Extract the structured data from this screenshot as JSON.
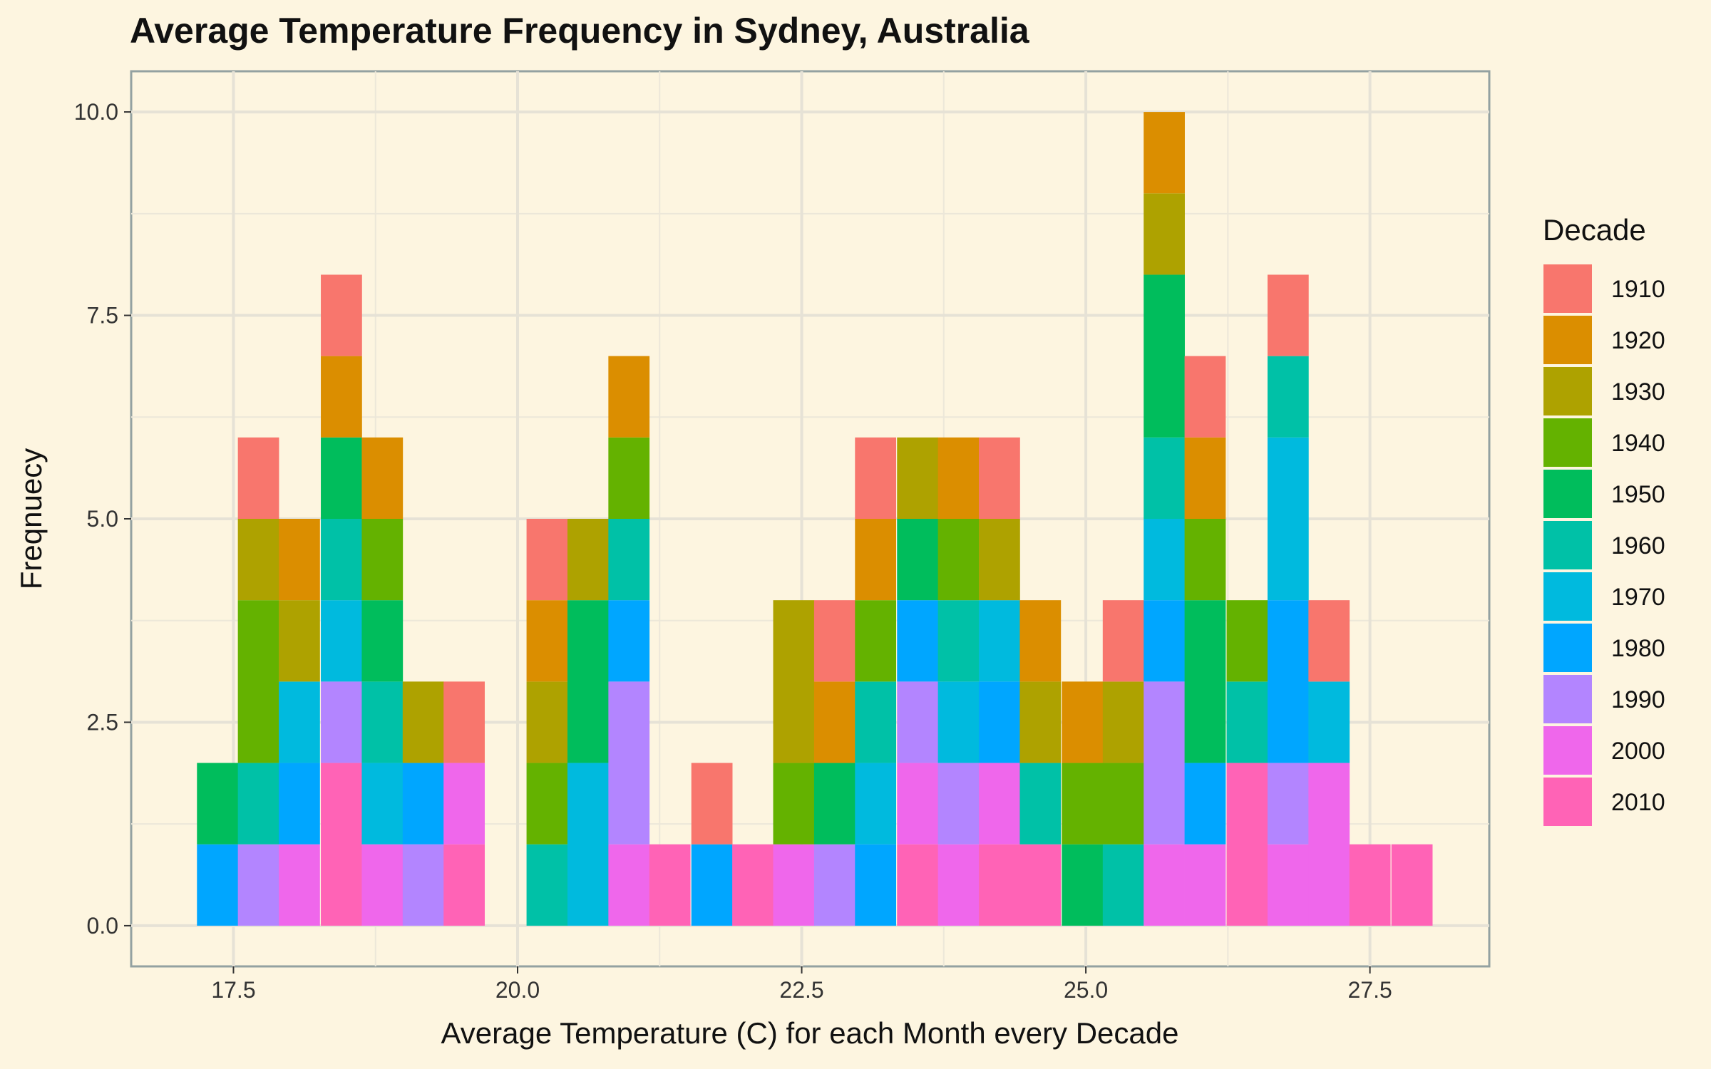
{
  "chart_data": {
    "type": "bar",
    "title": "Average Temperature Frequency in Sydney, Australia",
    "xlabel": "Average Temperature (C) for each Month every Decade",
    "ylabel": "Freqnuecy",
    "xlim": [
      16.6,
      28.55
    ],
    "ylim": [
      -0.5,
      10.5
    ],
    "x_ticks": [
      "17.5",
      "20.0",
      "22.5",
      "25.0",
      "27.5"
    ],
    "x_tick_values": [
      17.5,
      20.0,
      22.5,
      25.0,
      27.5
    ],
    "y_ticks": [
      "0.0",
      "2.5",
      "5.0",
      "7.5",
      "10.0"
    ],
    "y_tick_values": [
      0,
      2.5,
      5,
      7.5,
      10
    ],
    "bin_width": 0.3623,
    "legend_title": "Decade",
    "legend_position": "right",
    "grid": true,
    "series": [
      {
        "name": "1910",
        "color": "#F8766D"
      },
      {
        "name": "1920",
        "color": "#DB8E00"
      },
      {
        "name": "1930",
        "color": "#AEA200"
      },
      {
        "name": "1940",
        "color": "#64B200"
      },
      {
        "name": "1950",
        "color": "#00BD5C"
      },
      {
        "name": "1960",
        "color": "#00C1A7"
      },
      {
        "name": "1970",
        "color": "#00BADE"
      },
      {
        "name": "1980",
        "color": "#00A6FF"
      },
      {
        "name": "1990",
        "color": "#B385FF"
      },
      {
        "name": "2000",
        "color": "#EF67EB"
      },
      {
        "name": "2010",
        "color": "#FF63B6"
      }
    ],
    "bins": [
      {
        "x": 17.36,
        "stack": [
          [
            "1950",
            1
          ],
          [
            "1980",
            1
          ]
        ]
      },
      {
        "x": 17.72,
        "stack": [
          [
            "1910",
            1
          ],
          [
            "1930",
            1
          ],
          [
            "1940",
            2
          ],
          [
            "1960",
            1
          ],
          [
            "1990",
            1
          ]
        ]
      },
      {
        "x": 18.08,
        "stack": [
          [
            "1920",
            1
          ],
          [
            "1930",
            1
          ],
          [
            "1970",
            1
          ],
          [
            "1980",
            1
          ],
          [
            "2000",
            1
          ]
        ]
      },
      {
        "x": 18.45,
        "stack": [
          [
            "1910",
            1
          ],
          [
            "1920",
            1
          ],
          [
            "1950",
            1
          ],
          [
            "1960",
            1
          ],
          [
            "1970",
            1
          ],
          [
            "1990",
            1
          ],
          [
            "2010",
            2
          ]
        ]
      },
      {
        "x": 18.81,
        "stack": [
          [
            "1920",
            1
          ],
          [
            "1940",
            1
          ],
          [
            "1950",
            1
          ],
          [
            "1960",
            1
          ],
          [
            "1970",
            1
          ],
          [
            "2000",
            1
          ]
        ]
      },
      {
        "x": 19.17,
        "stack": [
          [
            "1930",
            1
          ],
          [
            "1980",
            1
          ],
          [
            "1990",
            1
          ]
        ]
      },
      {
        "x": 19.53,
        "stack": [
          [
            "1910",
            1
          ],
          [
            "2000",
            1
          ],
          [
            "2010",
            1
          ]
        ]
      },
      {
        "x": 20.26,
        "stack": [
          [
            "1910",
            1
          ],
          [
            "1920",
            1
          ],
          [
            "1930",
            1
          ],
          [
            "1940",
            1
          ],
          [
            "1960",
            1
          ]
        ]
      },
      {
        "x": 20.62,
        "stack": [
          [
            "1930",
            1
          ],
          [
            "1950",
            2
          ],
          [
            "1970",
            2
          ]
        ]
      },
      {
        "x": 20.98,
        "stack": [
          [
            "1920",
            1
          ],
          [
            "1940",
            1
          ],
          [
            "1960",
            1
          ],
          [
            "1980",
            1
          ],
          [
            "1990",
            2
          ],
          [
            "2000",
            1
          ]
        ]
      },
      {
        "x": 21.34,
        "stack": [
          [
            "2010",
            1
          ]
        ]
      },
      {
        "x": 21.71,
        "stack": [
          [
            "1910",
            1
          ],
          [
            "1980",
            1
          ]
        ]
      },
      {
        "x": 22.07,
        "stack": [
          [
            "2010",
            1
          ]
        ]
      },
      {
        "x": 22.43,
        "stack": [
          [
            "1930",
            2
          ],
          [
            "1940",
            1
          ],
          [
            "2000",
            1
          ]
        ]
      },
      {
        "x": 22.79,
        "stack": [
          [
            "1910",
            1
          ],
          [
            "1920",
            1
          ],
          [
            "1950",
            1
          ],
          [
            "1990",
            1
          ]
        ]
      },
      {
        "x": 23.15,
        "stack": [
          [
            "1910",
            1
          ],
          [
            "1920",
            1
          ],
          [
            "1940",
            1
          ],
          [
            "1960",
            1
          ],
          [
            "1970",
            1
          ],
          [
            "1980",
            1
          ]
        ]
      },
      {
        "x": 23.52,
        "stack": [
          [
            "1930",
            1
          ],
          [
            "1950",
            1
          ],
          [
            "1980",
            1
          ],
          [
            "1990",
            1
          ],
          [
            "2000",
            1
          ],
          [
            "2010",
            1
          ]
        ]
      },
      {
        "x": 23.88,
        "stack": [
          [
            "1920",
            1
          ],
          [
            "1940",
            1
          ],
          [
            "1960",
            1
          ],
          [
            "1970",
            1
          ],
          [
            "1990",
            1
          ],
          [
            "2000",
            1
          ]
        ]
      },
      {
        "x": 24.24,
        "stack": [
          [
            "1910",
            1
          ],
          [
            "1930",
            1
          ],
          [
            "1970",
            1
          ],
          [
            "1980",
            1
          ],
          [
            "2000",
            1
          ],
          [
            "2010",
            1
          ]
        ]
      },
      {
        "x": 24.6,
        "stack": [
          [
            "1920",
            1
          ],
          [
            "1930",
            1
          ],
          [
            "1960",
            1
          ],
          [
            "2010",
            1
          ]
        ]
      },
      {
        "x": 24.97,
        "stack": [
          [
            "1920",
            1
          ],
          [
            "1940",
            1
          ],
          [
            "1950",
            1
          ]
        ]
      },
      {
        "x": 25.33,
        "stack": [
          [
            "1910",
            1
          ],
          [
            "1930",
            1
          ],
          [
            "1940",
            1
          ],
          [
            "1960",
            1
          ]
        ]
      },
      {
        "x": 25.69,
        "stack": [
          [
            "1920",
            1
          ],
          [
            "1930",
            1
          ],
          [
            "1950",
            2
          ],
          [
            "1960",
            1
          ],
          [
            "1970",
            1
          ],
          [
            "1980",
            1
          ],
          [
            "1990",
            2
          ],
          [
            "2000",
            1
          ]
        ]
      },
      {
        "x": 26.05,
        "stack": [
          [
            "1910",
            1
          ],
          [
            "1920",
            1
          ],
          [
            "1940",
            1
          ],
          [
            "1950",
            2
          ],
          [
            "1980",
            1
          ],
          [
            "2000",
            1
          ]
        ]
      },
      {
        "x": 26.42,
        "stack": [
          [
            "1940",
            1
          ],
          [
            "1960",
            1
          ],
          [
            "2010",
            2
          ]
        ]
      },
      {
        "x": 26.78,
        "stack": [
          [
            "1910",
            1
          ],
          [
            "1960",
            1
          ],
          [
            "1970",
            2
          ],
          [
            "1980",
            2
          ],
          [
            "1990",
            1
          ],
          [
            "2000",
            1
          ]
        ]
      },
      {
        "x": 27.14,
        "stack": [
          [
            "1910",
            1
          ],
          [
            "1970",
            1
          ],
          [
            "2000",
            2
          ]
        ]
      },
      {
        "x": 27.5,
        "stack": [
          [
            "2010",
            1
          ]
        ]
      },
      {
        "x": 27.87,
        "stack": [
          [
            "2010",
            1
          ]
        ]
      }
    ]
  }
}
